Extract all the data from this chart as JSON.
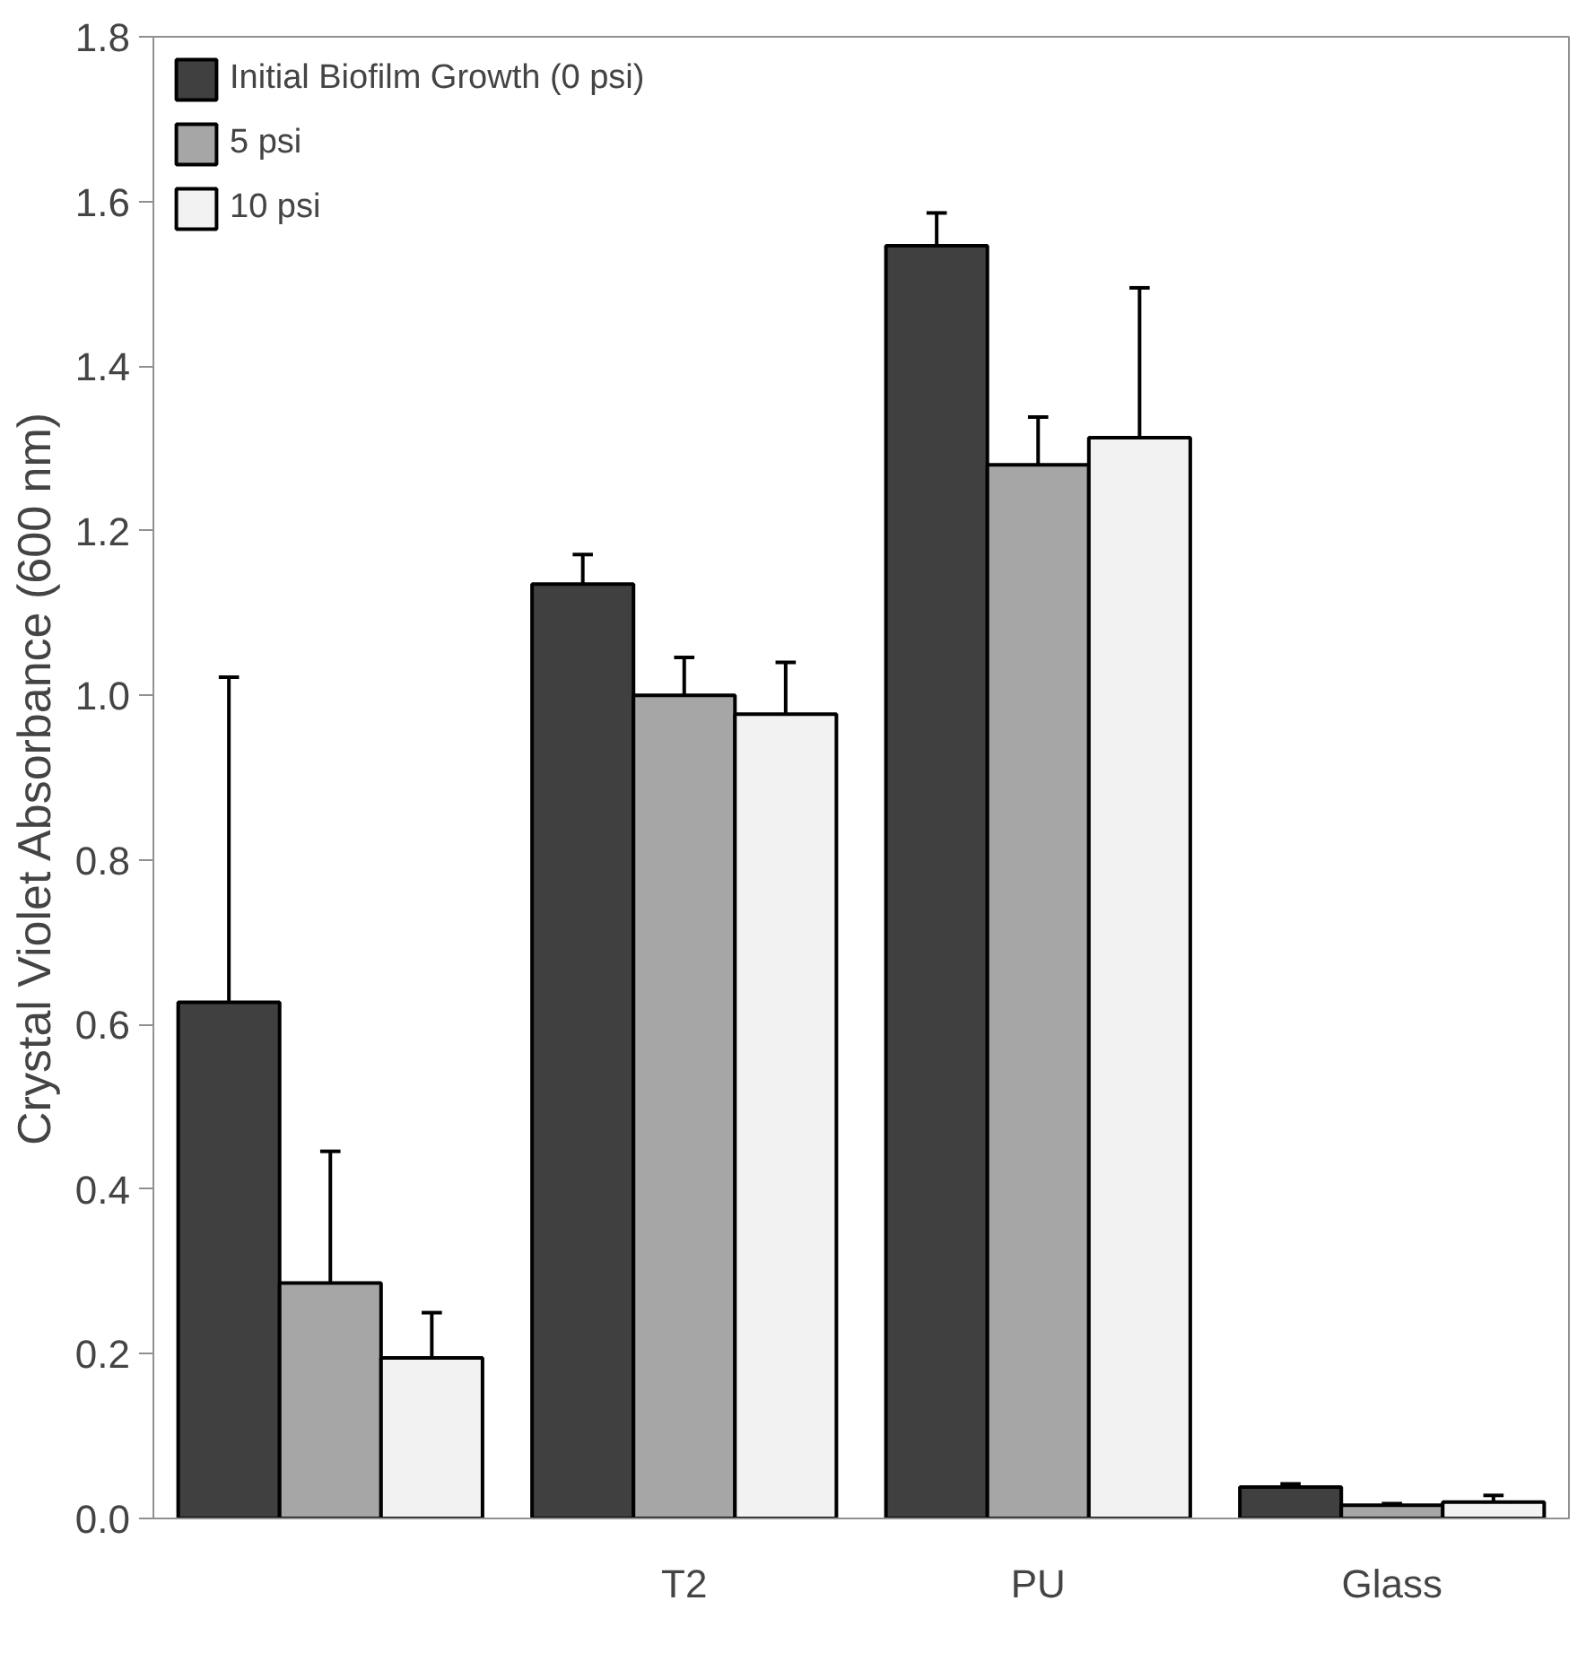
{
  "chart_data": {
    "type": "bar",
    "ylabel": "Crystal Violet Absorbance (600 nm)",
    "categories": [
      null,
      "T2",
      "PU",
      "Glass"
    ],
    "series": [
      {
        "name": "Initial Biofilm Growth (0 psi)",
        "color": "#404040",
        "values": [
          0.627,
          1.135,
          1.546,
          0.038
        ],
        "errors": [
          0.395,
          0.036,
          0.04,
          0.004
        ]
      },
      {
        "name": "5 psi",
        "color": "#a6a6a6",
        "values": [
          0.286,
          1.0,
          1.28,
          0.016
        ],
        "errors": [
          0.16,
          0.046,
          0.058,
          0.002
        ]
      },
      {
        "name": "10 psi",
        "color": "#f2f2f2",
        "values": [
          0.195,
          0.977,
          1.313,
          0.02
        ],
        "errors": [
          0.055,
          0.063,
          0.182,
          0.008
        ]
      }
    ],
    "ylim": [
      0,
      1.8
    ],
    "yticks": [
      {
        "value": 0,
        "label": "0.0"
      },
      {
        "value": 0.2,
        "label": "0.2"
      },
      {
        "value": 0.4,
        "label": "0.4"
      },
      {
        "value": 0.6,
        "label": "0.6"
      },
      {
        "value": 0.8,
        "label": "0.8"
      },
      {
        "value": 1.0,
        "label": "1.0"
      },
      {
        "value": 1.2,
        "label": "1.2"
      },
      {
        "value": 1.4,
        "label": "1.4"
      },
      {
        "value": 1.6,
        "label": "1.6"
      },
      {
        "value": 1.8,
        "label": "1.8"
      }
    ],
    "grid": false,
    "legend": "top left"
  }
}
